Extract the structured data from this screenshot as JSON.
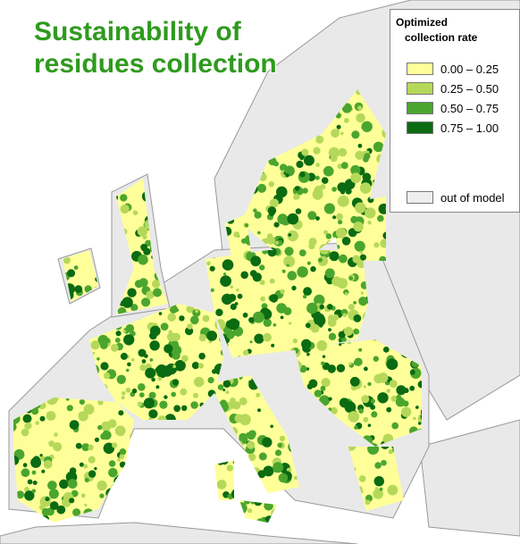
{
  "title": [
    "Sustainability of",
    "residues collection"
  ],
  "legend": {
    "title": [
      "Optimized",
      "collection rate"
    ],
    "items": [
      {
        "label": "0.00 – 0.25",
        "color": "#ffff99"
      },
      {
        "label": "0.25 – 0.50",
        "color": "#b5d85a"
      },
      {
        "label": "0.50 – 0.75",
        "color": "#4aa52e"
      },
      {
        "label": "0.75 – 1.00",
        "color": "#0b6b12"
      },
      {
        "label": "out of model",
        "color": "#eeeeee"
      }
    ]
  }
}
